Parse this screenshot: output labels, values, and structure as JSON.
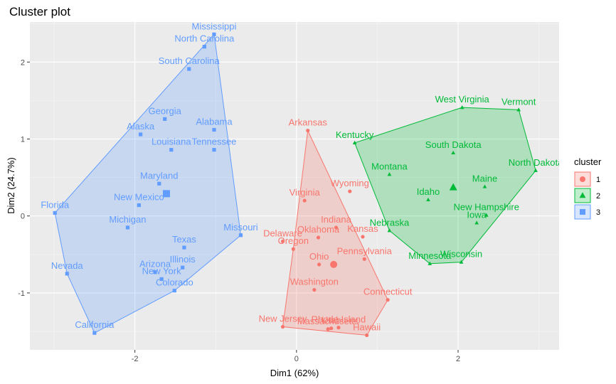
{
  "chart_data": {
    "type": "scatter",
    "title": "Cluster plot",
    "xlabel": "Dim1 (62%)",
    "ylabel": "Dim2 (24.7%)",
    "xlim": [
      -3.3,
      3.25
    ],
    "ylim": [
      -1.74,
      2.52
    ],
    "xticks": [
      -2,
      0,
      2
    ],
    "yticks": [
      -1,
      0,
      1,
      2
    ],
    "grid": true,
    "legend": {
      "title": "cluster",
      "position": "right"
    },
    "series": [
      {
        "name": "1",
        "color": "#f8766d",
        "shape": "circle",
        "center": [
          0.46,
          -0.63
        ],
        "points": [
          {
            "label": "Arkansas",
            "x": 0.14,
            "y": 1.11
          },
          {
            "label": "Wyoming",
            "x": 0.66,
            "y": 0.32
          },
          {
            "label": "Virginia",
            "x": 0.1,
            "y": 0.2
          },
          {
            "label": "Indiana",
            "x": 0.49,
            "y": -0.15
          },
          {
            "label": "Delaware",
            "x": -0.17,
            "y": -0.33
          },
          {
            "label": "Oklahoma",
            "x": 0.27,
            "y": -0.28
          },
          {
            "label": "Kansas",
            "x": 0.82,
            "y": -0.27
          },
          {
            "label": "Oregon",
            "x": -0.04,
            "y": -0.43
          },
          {
            "label": "Pennsylvania",
            "x": 0.84,
            "y": -0.56
          },
          {
            "label": "Ohio",
            "x": 0.28,
            "y": -0.63
          },
          {
            "label": "Washington",
            "x": 0.22,
            "y": -0.96
          },
          {
            "label": "Connecticut",
            "x": 1.13,
            "y": -1.09
          },
          {
            "label": "New Jersey",
            "x": -0.17,
            "y": -1.44
          },
          {
            "label": "Massachusetts",
            "x": 0.39,
            "y": -1.47
          },
          {
            "label": "Utah",
            "x": 0.43,
            "y": -1.46
          },
          {
            "label": "Rhode Island",
            "x": 0.52,
            "y": -1.45
          },
          {
            "label": "Hawaii",
            "x": 0.87,
            "y": -1.55
          }
        ]
      },
      {
        "name": "2",
        "color": "#00ba38",
        "shape": "triangle",
        "center": [
          1.94,
          0.37
        ],
        "points": [
          {
            "label": "West Virginia",
            "x": 2.05,
            "y": 1.41
          },
          {
            "label": "Vermont",
            "x": 2.75,
            "y": 1.38
          },
          {
            "label": "Kentucky",
            "x": 0.72,
            "y": 0.95
          },
          {
            "label": "South Dakota",
            "x": 1.94,
            "y": 0.82
          },
          {
            "label": "North Dakota",
            "x": 2.96,
            "y": 0.59
          },
          {
            "label": "Montana",
            "x": 1.15,
            "y": 0.54
          },
          {
            "label": "Maine",
            "x": 2.33,
            "y": 0.38
          },
          {
            "label": "Idaho",
            "x": 1.63,
            "y": 0.21
          },
          {
            "label": "New Hampshire",
            "x": 2.35,
            "y": 0.01
          },
          {
            "label": "Iowa",
            "x": 2.23,
            "y": -0.09
          },
          {
            "label": "Nebraska",
            "x": 1.15,
            "y": -0.19
          },
          {
            "label": "Minnesota",
            "x": 1.65,
            "y": -0.62
          },
          {
            "label": "Wisconsin",
            "x": 2.04,
            "y": -0.6
          }
        ]
      },
      {
        "name": "3",
        "color": "#619cff",
        "shape": "square",
        "center": [
          -1.61,
          0.29
        ],
        "points": [
          {
            "label": "Mississippi",
            "x": -1.02,
            "y": 2.36
          },
          {
            "label": "North Carolina",
            "x": -1.14,
            "y": 2.2
          },
          {
            "label": "South Carolina",
            "x": -1.33,
            "y": 1.91
          },
          {
            "label": "Georgia",
            "x": -1.63,
            "y": 1.26
          },
          {
            "label": "Alaska",
            "x": -1.93,
            "y": 1.06
          },
          {
            "label": "Alabama",
            "x": -1.02,
            "y": 1.12
          },
          {
            "label": "Louisiana",
            "x": -1.55,
            "y": 0.86
          },
          {
            "label": "Tennessee",
            "x": -1.02,
            "y": 0.86
          },
          {
            "label": "Maryland",
            "x": -1.7,
            "y": 0.42
          },
          {
            "label": "New Mexico",
            "x": -1.95,
            "y": 0.14
          },
          {
            "label": "Florida",
            "x": -2.99,
            "y": 0.04
          },
          {
            "label": "Michigan",
            "x": -2.09,
            "y": -0.15
          },
          {
            "label": "Missouri",
            "x": -0.69,
            "y": -0.25
          },
          {
            "label": "Texas",
            "x": -1.39,
            "y": -0.41
          },
          {
            "label": "Illinois",
            "x": -1.41,
            "y": -0.67
          },
          {
            "label": "Arizona",
            "x": -1.75,
            "y": -0.73
          },
          {
            "label": "New York",
            "x": -1.67,
            "y": -0.82
          },
          {
            "label": "Colorado",
            "x": -1.51,
            "y": -0.97
          },
          {
            "label": "Nevada",
            "x": -2.84,
            "y": -0.75
          },
          {
            "label": "California",
            "x": -2.5,
            "y": -1.52
          }
        ]
      }
    ],
    "hulls": [
      [
        "Arkansas",
        "Connecticut",
        "Hawaii",
        "New Jersey",
        "Oregon"
      ],
      [
        "West Virginia",
        "Vermont",
        "North Dakota",
        "Wisconsin",
        "Minnesota",
        "Nebraska",
        "Kentucky"
      ],
      [
        "Mississippi",
        "Missouri",
        "Colorado",
        "California",
        "Nevada",
        "Florida"
      ]
    ]
  }
}
